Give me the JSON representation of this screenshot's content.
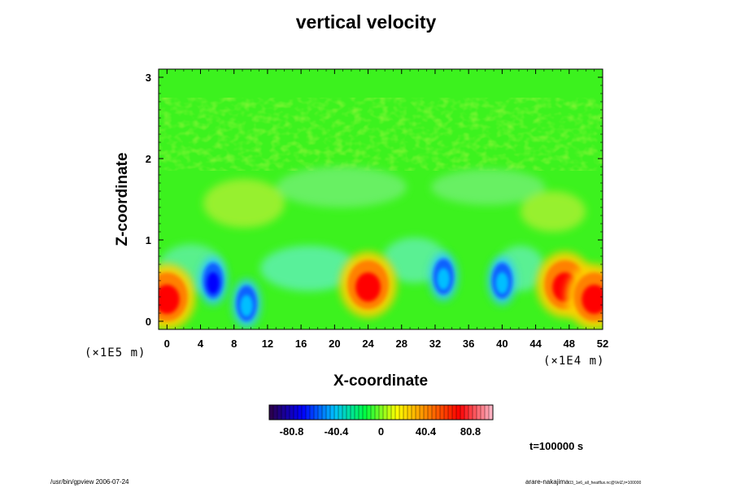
{
  "chart_data": {
    "type": "heatmap",
    "title": "vertical velocity",
    "xlabel": "X-coordinate",
    "ylabel": "Z-coordinate",
    "x_ticks": [
      "0",
      "4",
      "8",
      "12",
      "16",
      "20",
      "24",
      "28",
      "32",
      "36",
      "40",
      "44",
      "48",
      "52"
    ],
    "y_ticks": [
      "0",
      "1",
      "2",
      "3"
    ],
    "x_unit": "(×1E4 m)",
    "y_unit": "(×1E5 m)",
    "xlim": [
      -1,
      52
    ],
    "ylim": [
      -0.1,
      3.1
    ],
    "colorbar": {
      "ticks": [
        "-80.8",
        "-40.4",
        "0",
        "40.4",
        "80.8"
      ],
      "range": [
        -101,
        101
      ],
      "palette": [
        "#2a0050",
        "#0000ff",
        "#00bfff",
        "#00ff40",
        "#ffff00",
        "#ff8000",
        "#ff0000",
        "#ffb0c0"
      ]
    },
    "features": [
      {
        "x": 0,
        "z": 0.3,
        "value": 60,
        "sign": "updraft"
      },
      {
        "x": 5.5,
        "z": 0.5,
        "value": -60,
        "sign": "downdraft"
      },
      {
        "x": 9.5,
        "z": 0.22,
        "value": -50,
        "sign": "downdraft"
      },
      {
        "x": 24,
        "z": 0.45,
        "value": 80,
        "sign": "updraft"
      },
      {
        "x": 33,
        "z": 0.55,
        "value": -55,
        "sign": "downdraft"
      },
      {
        "x": 40,
        "z": 0.5,
        "value": -45,
        "sign": "downdraft"
      },
      {
        "x": 47.5,
        "z": 0.45,
        "value": 65,
        "sign": "updraft"
      },
      {
        "x": 51,
        "z": 0.3,
        "value": 60,
        "sign": "updraft"
      }
    ]
  },
  "time_label": "t=100000 s",
  "footer_left": "/usr/bin/gpview 2006-07-24",
  "footer_right": "arare-nakajima",
  "footer_right_small": "03_1e6_all_heatflux.nc@VelZ,t=100000"
}
